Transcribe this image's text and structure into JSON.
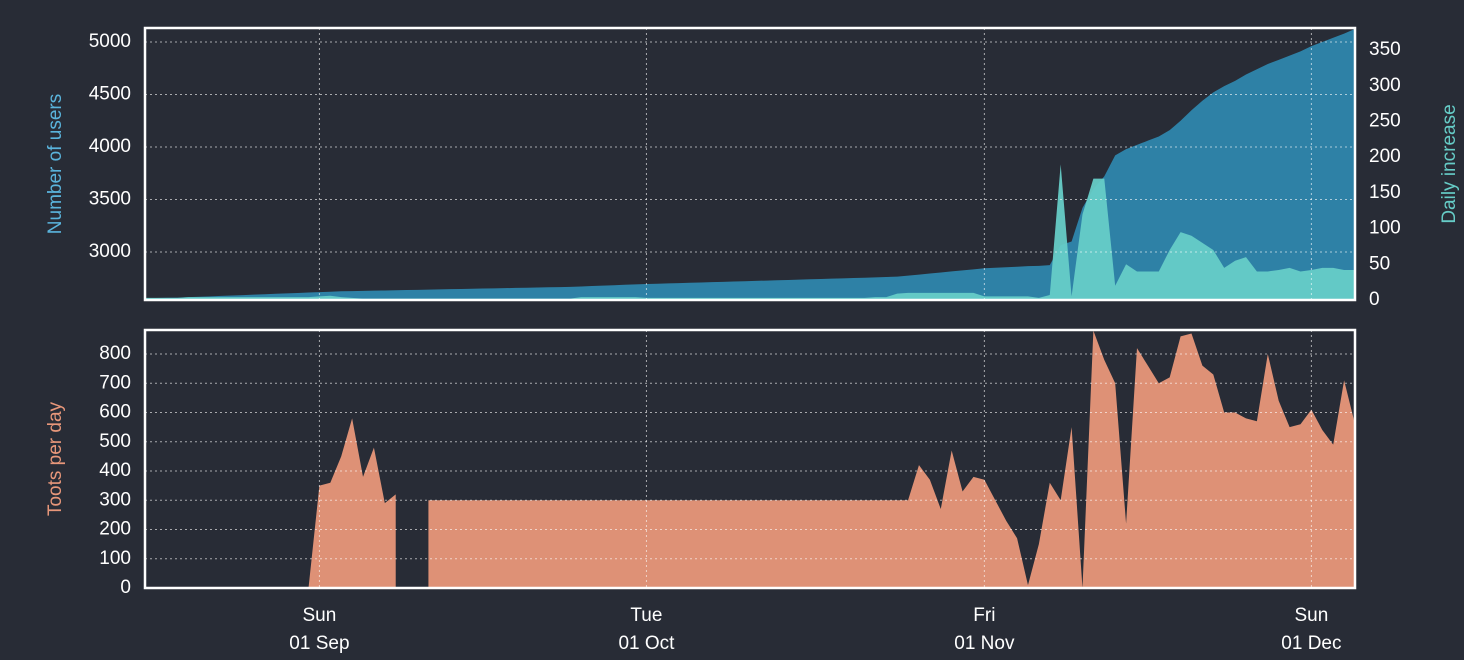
{
  "chart_data": {
    "type": "area",
    "x": [
      "16 Aug",
      "17 Aug",
      "18 Aug",
      "19 Aug",
      "20 Aug",
      "21 Aug",
      "22 Aug",
      "23 Aug",
      "24 Aug",
      "25 Aug",
      "26 Aug",
      "27 Aug",
      "28 Aug",
      "29 Aug",
      "30 Aug",
      "31 Aug",
      "01 Sep",
      "02 Sep",
      "03 Sep",
      "04 Sep",
      "05 Sep",
      "06 Sep",
      "07 Sep",
      "08 Sep",
      "09 Sep",
      "10 Sep",
      "11 Sep",
      "12 Sep",
      "13 Sep",
      "14 Sep",
      "15 Sep",
      "16 Sep",
      "17 Sep",
      "18 Sep",
      "19 Sep",
      "20 Sep",
      "21 Sep",
      "22 Sep",
      "23 Sep",
      "24 Sep",
      "25 Sep",
      "26 Sep",
      "27 Sep",
      "28 Sep",
      "29 Sep",
      "30 Sep",
      "01 Oct",
      "02 Oct",
      "03 Oct",
      "04 Oct",
      "05 Oct",
      "06 Oct",
      "07 Oct",
      "08 Oct",
      "09 Oct",
      "10 Oct",
      "11 Oct",
      "12 Oct",
      "13 Oct",
      "14 Oct",
      "15 Oct",
      "16 Oct",
      "17 Oct",
      "18 Oct",
      "19 Oct",
      "20 Oct",
      "21 Oct",
      "22 Oct",
      "23 Oct",
      "24 Oct",
      "25 Oct",
      "26 Oct",
      "27 Oct",
      "28 Oct",
      "29 Oct",
      "30 Oct",
      "31 Oct",
      "01 Nov",
      "02 Nov",
      "03 Nov",
      "04 Nov",
      "05 Nov",
      "06 Nov",
      "07 Nov",
      "08 Nov",
      "09 Nov",
      "10 Nov",
      "11 Nov",
      "12 Nov",
      "13 Nov",
      "14 Nov",
      "15 Nov",
      "16 Nov",
      "17 Nov",
      "18 Nov",
      "19 Nov",
      "20 Nov",
      "21 Nov",
      "22 Nov",
      "23 Nov",
      "24 Nov",
      "25 Nov",
      "26 Nov",
      "27 Nov",
      "28 Nov",
      "29 Nov",
      "30 Nov",
      "01 Dec",
      "02 Dec",
      "03 Dec",
      "04 Dec",
      "05 Dec"
    ],
    "xticks": [
      {
        "weekday": "Sun",
        "date": "01 Sep"
      },
      {
        "weekday": "Tue",
        "date": "01 Oct"
      },
      {
        "weekday": "Fri",
        "date": "01 Nov"
      },
      {
        "weekday": "Sun",
        "date": "01 Dec"
      }
    ],
    "grid": true,
    "panels": [
      {
        "ylabel": "Number of users",
        "ylabel_color": "#5ab4dc",
        "ylim": [
          2543,
          5133
        ],
        "yticks": [
          3000,
          3500,
          4000,
          4500,
          5000
        ],
        "y2label": "Daily increase",
        "y2label_color": "#66ccc7",
        "y2lim": [
          0,
          381
        ],
        "y2ticks": [
          0,
          50,
          100,
          150,
          200,
          250,
          300,
          350
        ],
        "series": [
          {
            "color": "#2e86ad",
            "values": [
              2560,
              2562,
              2564,
              2566,
              2570,
              2574,
              2578,
              2582,
              2586,
              2590,
              2594,
              2598,
              2602,
              2606,
              2610,
              2614,
              2618,
              2622,
              2626,
              2628,
              2630,
              2632,
              2634,
              2636,
              2638,
              2640,
              2642,
              2644,
              2646,
              2648,
              2650,
              2652,
              2654,
              2656,
              2658,
              2660,
              2662,
              2664,
              2666,
              2668,
              2672,
              2676,
              2680,
              2684,
              2688,
              2692,
              2695,
              2698,
              2701,
              2704,
              2707,
              2710,
              2713,
              2716,
              2719,
              2722,
              2725,
              2728,
              2731,
              2734,
              2737,
              2740,
              2743,
              2746,
              2749,
              2752,
              2755,
              2758,
              2762,
              2766,
              2775,
              2785,
              2795,
              2805,
              2815,
              2825,
              2835,
              2845,
              2850,
              2855,
              2860,
              2865,
              2868,
              2875,
              3065,
              3100,
              3420,
              3600,
              3720,
              3920,
              3980,
              4020,
              4060,
              4100,
              4160,
              4250,
              4350,
              4440,
              4520,
              4580,
              4630,
              4690,
              4740,
              4790,
              4830,
              4870,
              4910,
              4960,
              5000,
              5040,
              5080,
              5125
            ]
          },
          {
            "color": "#66ccc7",
            "axis": "y2",
            "values": [
              3,
              3,
              3,
              3,
              4,
              4,
              4,
              4,
              4,
              4,
              4,
              4,
              4,
              4,
              4,
              4,
              5,
              6,
              4,
              3,
              2,
              2,
              2,
              2,
              2,
              2,
              2,
              2,
              2,
              2,
              2,
              2,
              2,
              2,
              2,
              2,
              2,
              2,
              2,
              2,
              4,
              4,
              4,
              4,
              4,
              4,
              3,
              3,
              3,
              3,
              3,
              3,
              3,
              3,
              3,
              3,
              3,
              3,
              3,
              3,
              3,
              3,
              3,
              3,
              3,
              3,
              3,
              4,
              4,
              9,
              10,
              10,
              10,
              10,
              10,
              10,
              10,
              5,
              5,
              5,
              5,
              5,
              3,
              7,
              190,
              5,
              120,
              170,
              170,
              20,
              50,
              40,
              40,
              40,
              70,
              95,
              90,
              80,
              70,
              45,
              55,
              60,
              40,
              40,
              42,
              45,
              40,
              42,
              45,
              45,
              42,
              42
            ]
          }
        ]
      },
      {
        "ylabel": "Toots per day",
        "ylabel_color": "#e8977a",
        "ylim": [
          0,
          882
        ],
        "yticks": [
          0,
          100,
          200,
          300,
          400,
          500,
          600,
          700,
          800
        ],
        "series": [
          {
            "color": "#e8977a",
            "values": [
              0,
              0,
              0,
              0,
              0,
              0,
              0,
              0,
              0,
              0,
              0,
              0,
              0,
              0,
              0,
              0,
              350,
              360,
              450,
              580,
              380,
              480,
              290,
              320,
              null,
              null,
              300,
              300,
              300,
              300,
              300,
              300,
              300,
              300,
              300,
              300,
              300,
              300,
              300,
              300,
              300,
              300,
              300,
              300,
              300,
              300,
              300,
              300,
              300,
              300,
              300,
              300,
              300,
              300,
              300,
              300,
              300,
              300,
              300,
              300,
              300,
              300,
              300,
              300,
              300,
              300,
              300,
              300,
              300,
              300,
              300,
              420,
              370,
              270,
              470,
              330,
              380,
              370,
              300,
              230,
              170,
              10,
              150,
              360,
              300,
              550,
              0,
              880,
              780,
              700,
              220,
              820,
              760,
              700,
              720,
              860,
              870,
              760,
              730,
              600,
              600,
              580,
              570,
              800,
              640,
              550,
              560,
              610,
              540,
              490,
              710,
              560
            ]
          }
        ]
      }
    ]
  }
}
